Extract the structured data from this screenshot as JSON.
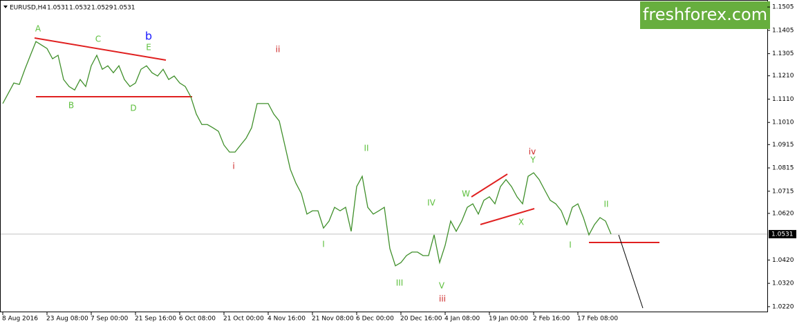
{
  "chart_data": {
    "type": "line",
    "symbol": "EURUSD,H4",
    "ohlc": [
      1.0531,
      1.0532,
      1.0529,
      1.0531
    ],
    "watermark": "freshforex.com",
    "categories": [
      "8 Aug 2016",
      null,
      null,
      null,
      null,
      null,
      null,
      null,
      "23 Aug 08:00",
      null,
      null,
      null,
      null,
      null,
      null,
      null,
      "7 Sep 00:00",
      null,
      null,
      null,
      null,
      null,
      null,
      null,
      "21 Sep 16:00",
      null,
      null,
      null,
      null,
      null,
      null,
      null,
      "6 Oct 08:00",
      null,
      null,
      null,
      null,
      null,
      null,
      null,
      "21 Oct 00:00",
      null,
      null,
      null,
      null,
      null,
      null,
      null,
      "4 Nov 16:00",
      null,
      null,
      null,
      null,
      null,
      null,
      null,
      "21 Nov 08:00",
      null,
      null,
      null,
      null,
      null,
      null,
      null,
      "6 Dec 00:00",
      null,
      null,
      null,
      null,
      null,
      null,
      null,
      "20 Dec 16:00",
      null,
      null,
      null,
      null,
      null,
      null,
      null,
      "4 Jan 08:00",
      null,
      null,
      null,
      null,
      null,
      null,
      null,
      "19 Jan 00:00",
      null,
      null,
      null,
      null,
      null,
      null,
      null,
      "2 Feb 16:00",
      null,
      null,
      null,
      null,
      null,
      null,
      null,
      "17 Feb 08:00",
      null,
      null,
      null,
      null,
      null,
      null
    ],
    "series": [
      {
        "name": "EURUSD",
        "color": "#3f8f2a",
        "values": [
          1.1091,
          1.1135,
          1.1179,
          1.1173,
          1.1238,
          1.1298,
          1.1357,
          1.1342,
          1.1327,
          1.1283,
          1.1298,
          1.1194,
          1.1164,
          1.1149,
          1.1194,
          1.1164,
          1.1253,
          1.1298,
          1.1238,
          1.1253,
          1.1223,
          1.1253,
          1.1194,
          1.1164,
          1.1179,
          1.1238,
          1.1253,
          1.1223,
          1.1209,
          1.1238,
          1.1194,
          1.1209,
          1.1179,
          1.1164,
          1.112,
          1.1046,
          1.1001,
          1.1001,
          1.0987,
          1.0972,
          1.0913,
          1.0883,
          1.0883,
          1.0913,
          1.0942,
          1.0987,
          1.1091,
          1.1091,
          1.1091,
          1.1046,
          1.1016,
          1.0913,
          1.0809,
          1.075,
          1.0705,
          1.0617,
          1.0631,
          1.0631,
          1.0557,
          1.0587,
          1.0646,
          1.0631,
          1.0646,
          1.0543,
          1.0735,
          1.0779,
          1.0646,
          1.0617,
          1.0631,
          1.0646,
          1.0469,
          1.0395,
          1.0409,
          1.0439,
          1.0454,
          1.0454,
          1.0439,
          1.0439,
          1.0528,
          1.0409,
          1.0483,
          1.0587,
          1.0543,
          1.0587,
          1.0646,
          1.0661,
          1.0617,
          1.0676,
          1.0691,
          1.0661,
          1.0735,
          1.0765,
          1.0735,
          1.0691,
          1.0661,
          1.0779,
          1.0794,
          1.0765,
          1.072,
          1.0676,
          1.0661,
          1.0631,
          1.0572,
          1.0646,
          1.0661,
          1.0602,
          1.0528,
          1.0572,
          1.0602,
          1.0587,
          1.0531
        ]
      }
    ],
    "current_price": 1.0531,
    "ylim": [
      1.0196,
      1.1535
    ],
    "yticks": [
      1.1505,
      1.1405,
      1.1305,
      {
        "value": 1.121,
        "label": "1.1210"
      },
      {
        "value": 1.111,
        "label": "1.1110"
      },
      {
        "value": 1.101,
        "label": "1.1010"
      },
      1.0915,
      1.0815,
      1.0715,
      {
        "value": 1.062,
        "label": "1.0620"
      },
      {
        "value": 1.042,
        "label": "1.0420"
      },
      {
        "value": 1.032,
        "label": "1.0320"
      },
      {
        "value": 1.022,
        "label": "1.0220"
      }
    ],
    "annotations": [
      {
        "text": "A",
        "color": "#5cbf3c"
      },
      {
        "text": "C",
        "color": "#5cbf3c"
      },
      {
        "text": "b",
        "color": "#1a1aff"
      },
      {
        "text": "E",
        "color": "#5cbf3c"
      },
      {
        "text": "B",
        "color": "#5cbf3c"
      },
      {
        "text": "D",
        "color": "#5cbf3c"
      },
      {
        "text": "ii",
        "color": "#cc2222"
      },
      {
        "text": "i",
        "color": "#cc2222"
      },
      {
        "text": "II",
        "color": "#5cbf3c"
      },
      {
        "text": "I",
        "color": "#5cbf3c"
      },
      {
        "text": "III",
        "color": "#5cbf3c"
      },
      {
        "text": "IV",
        "color": "#5cbf3c"
      },
      {
        "text": "V",
        "color": "#5cbf3c"
      },
      {
        "text": "iii",
        "color": "#cc2222"
      },
      {
        "text": "W",
        "color": "#5cbf3c"
      },
      {
        "text": "X",
        "color": "#5cbf3c"
      },
      {
        "text": "Y",
        "color": "#5cbf3c"
      },
      {
        "text": "iv",
        "color": "#cc2222"
      },
      {
        "text": "I",
        "color": "#5cbf3c"
      },
      {
        "text": "II",
        "color": "#5cbf3c"
      }
    ]
  }
}
